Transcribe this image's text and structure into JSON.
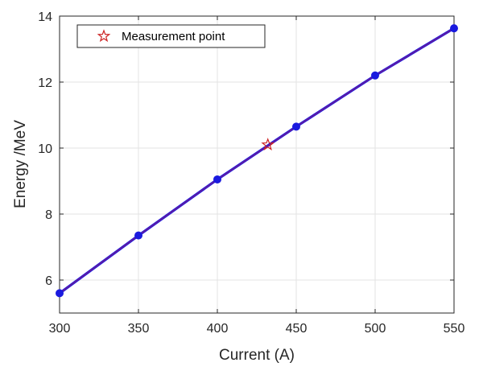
{
  "chart_data": {
    "type": "line",
    "xlabel": "Current (A)",
    "ylabel": "Energy /MeV",
    "xlim": [
      300,
      550
    ],
    "ylim": [
      5,
      14
    ],
    "xticks": [
      300,
      350,
      400,
      450,
      500,
      550
    ],
    "yticks": [
      6,
      8,
      10,
      12,
      14
    ],
    "grid": true,
    "legend": {
      "position": "top-left",
      "entries": [
        "Measurement point"
      ]
    },
    "series": [
      {
        "color": "#1a1adf",
        "line_color": "#6a1a9a",
        "marker": "circle",
        "x": [
          300,
          350,
          400,
          450,
          500,
          550
        ],
        "y": [
          5.6,
          7.35,
          9.05,
          10.65,
          12.2,
          13.63
        ]
      },
      {
        "name": "Measurement point",
        "color": "#cc2222",
        "marker": "star",
        "x": [
          432
        ],
        "y": [
          10.1
        ]
      }
    ]
  }
}
